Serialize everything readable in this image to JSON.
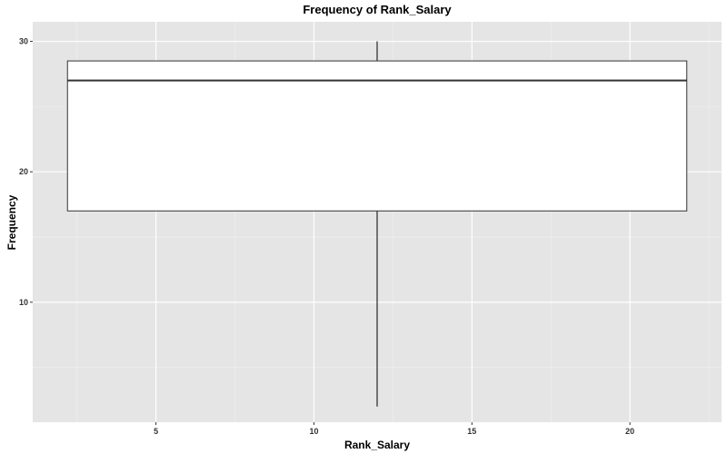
{
  "chart_data": {
    "type": "boxplot",
    "title": "Frequency of Rank_Salary",
    "xlabel": "Rank_Salary",
    "ylabel": "Frequency",
    "xlim": [
      1.1,
      22.9
    ],
    "ylim": [
      0.8,
      31.5
    ],
    "x_ticks": [
      5,
      10,
      15,
      20
    ],
    "x_tick_labels": [
      "5",
      "10",
      "15",
      "20"
    ],
    "y_ticks": [
      10,
      20,
      30
    ],
    "y_tick_labels": [
      "10",
      "20",
      "30"
    ],
    "grid": true,
    "box": {
      "x_center": 12,
      "x_left": 2.2,
      "x_right": 21.8,
      "whisker_low": 2,
      "q1": 17,
      "median": 27,
      "q3": 28.5,
      "whisker_high": 30
    },
    "colors": {
      "panel_bg": "#e5e5e5",
      "grid_major": "#ffffff",
      "grid_minor": "#f0f0f0",
      "box_fill": "#ffffff",
      "box_stroke": "#333333"
    }
  }
}
